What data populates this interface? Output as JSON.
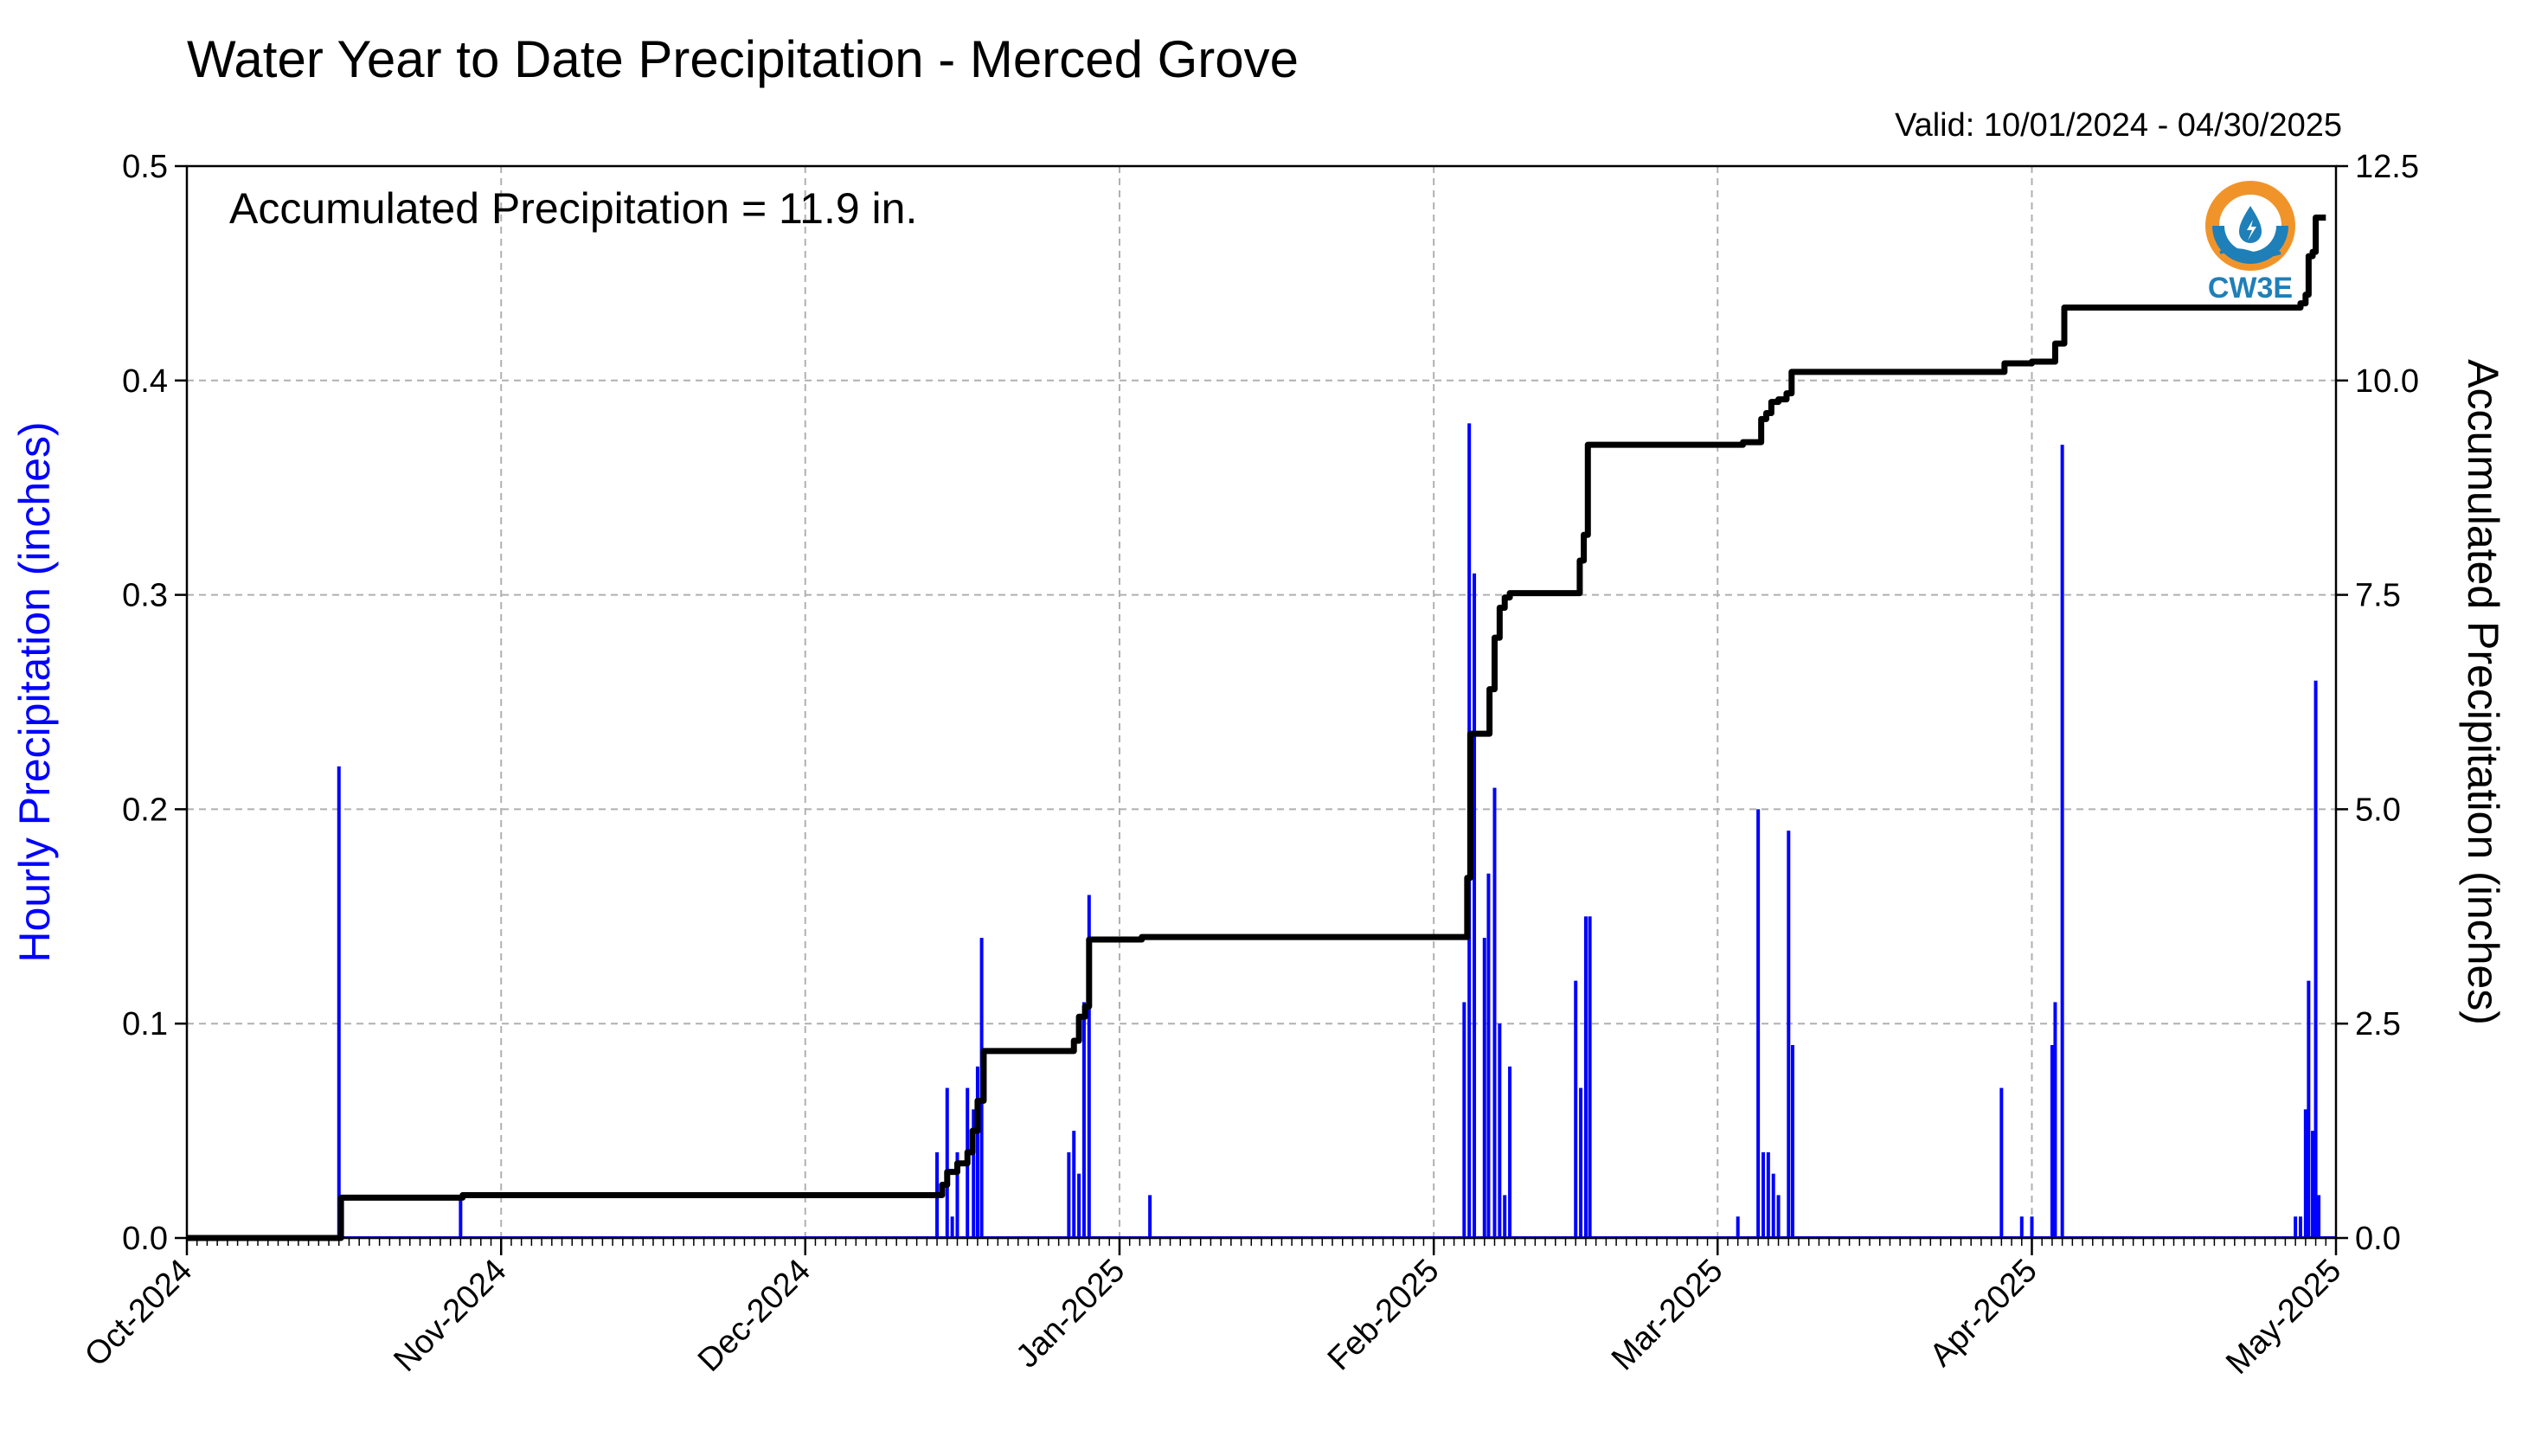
{
  "title": "Water Year to Date Precipitation - Merced Grove",
  "valid_text": "Valid: 10/01/2024 - 04/30/2025",
  "accumulated_text": "Accumulated Precipitation = 11.9 in.",
  "logo_text": "CW3E",
  "colors": {
    "hourly": "#0000ff",
    "accumulated": "#000000",
    "grid": "#b0b0b0",
    "logo_orange": "#f0942a",
    "logo_blue": "#1f7fb8"
  },
  "chart_data": {
    "type": "bar",
    "xlabel": "",
    "ylabel": "Hourly Precipitation (inches)",
    "y2label": "Accumulated Precipitation (inches)",
    "xlim": [
      "2024-10-01",
      "2025-05-01"
    ],
    "ylim": [
      0,
      0.5
    ],
    "y2lim": [
      0,
      12.5
    ],
    "grid": true,
    "x_ticks": [
      "Oct-2024",
      "Nov-2024",
      "Dec-2024",
      "Jan-2025",
      "Feb-2025",
      "Mar-2025",
      "Apr-2025",
      "May-2025"
    ],
    "y_ticks": [
      "0.0",
      "0.1",
      "0.2",
      "0.3",
      "0.4",
      "0.5"
    ],
    "y2_ticks": [
      "0.0",
      "2.5",
      "5.0",
      "7.5",
      "10.0",
      "12.5"
    ],
    "series": [
      {
        "name": "Hourly Precipitation (inches)",
        "type": "bar",
        "axis": "left",
        "points": [
          [
            "2024-10-16",
            0.22
          ],
          [
            "2024-10-28",
            0.02
          ],
          [
            "2024-12-14",
            0.04
          ],
          [
            "2024-12-15",
            0.07
          ],
          [
            "2024-12-15.5",
            0.01
          ],
          [
            "2024-12-16",
            0.04
          ],
          [
            "2024-12-17",
            0.07
          ],
          [
            "2024-12-17.6",
            0.06
          ],
          [
            "2024-12-18",
            0.08
          ],
          [
            "2024-12-18.4",
            0.14
          ],
          [
            "2024-12-27",
            0.04
          ],
          [
            "2024-12-27.5",
            0.05
          ],
          [
            "2024-12-28",
            0.03
          ],
          [
            "2024-12-28.5",
            0.11
          ],
          [
            "2024-12-29",
            0.16
          ],
          [
            "2025-01-04",
            0.02
          ],
          [
            "2025-02-04",
            0.11
          ],
          [
            "2025-02-04.5",
            0.38
          ],
          [
            "2025-02-05",
            0.31
          ],
          [
            "2025-02-06",
            0.14
          ],
          [
            "2025-02-06.4",
            0.17
          ],
          [
            "2025-02-07",
            0.21
          ],
          [
            "2025-02-07.5",
            0.1
          ],
          [
            "2025-02-08",
            0.02
          ],
          [
            "2025-02-08.5",
            0.08
          ],
          [
            "2025-02-15",
            0.12
          ],
          [
            "2025-02-15.5",
            0.07
          ],
          [
            "2025-02-16",
            0.15
          ],
          [
            "2025-02-16.4",
            0.15
          ],
          [
            "2025-03-03",
            0.01
          ],
          [
            "2025-03-05",
            0.2
          ],
          [
            "2025-03-05.5",
            0.04
          ],
          [
            "2025-03-06",
            0.04
          ],
          [
            "2025-03-06.5",
            0.03
          ],
          [
            "2025-03-07",
            0.02
          ],
          [
            "2025-03-08",
            0.19
          ],
          [
            "2025-03-08.4",
            0.09
          ],
          [
            "2025-03-29",
            0.07
          ],
          [
            "2025-03-31",
            0.01
          ],
          [
            "2025-04-01",
            0.01
          ],
          [
            "2025-04-03",
            0.09
          ],
          [
            "2025-04-03.3",
            0.11
          ],
          [
            "2025-04-04",
            0.37
          ],
          [
            "2025-04-27",
            0.01
          ],
          [
            "2025-04-27.5",
            0.01
          ],
          [
            "2025-04-28",
            0.06
          ],
          [
            "2025-04-28.3",
            0.12
          ],
          [
            "2025-04-28.7",
            0.05
          ],
          [
            "2025-04-29",
            0.26
          ],
          [
            "2025-04-29.3",
            0.02
          ]
        ]
      },
      {
        "name": "Accumulated Precipitation (inches)",
        "type": "step-line",
        "axis": "right",
        "points": [
          [
            "2024-10-01",
            0.0
          ],
          [
            "2024-10-16",
            0.0
          ],
          [
            "2024-10-16.2",
            0.47
          ],
          [
            "2024-10-28",
            0.47
          ],
          [
            "2024-10-28.2",
            0.5
          ],
          [
            "2024-12-14",
            0.5
          ],
          [
            "2024-12-14.5",
            0.62
          ],
          [
            "2024-12-15",
            0.77
          ],
          [
            "2024-12-16",
            0.87
          ],
          [
            "2024-12-17",
            1.0
          ],
          [
            "2024-12-17.5",
            1.25
          ],
          [
            "2024-12-18",
            1.6
          ],
          [
            "2024-12-18.6",
            2.18
          ],
          [
            "2024-12-27",
            2.18
          ],
          [
            "2024-12-27.5",
            2.3
          ],
          [
            "2024-12-28",
            2.58
          ],
          [
            "2024-12-28.6",
            2.7
          ],
          [
            "2024-12-29",
            3.48
          ],
          [
            "2025-01-03",
            3.48
          ],
          [
            "2025-01-03.2",
            3.51
          ],
          [
            "2025-02-04",
            3.51
          ],
          [
            "2025-02-04.3",
            4.2
          ],
          [
            "2025-02-04.6",
            5.88
          ],
          [
            "2025-02-06",
            5.88
          ],
          [
            "2025-02-06.5",
            6.4
          ],
          [
            "2025-02-07",
            7.0
          ],
          [
            "2025-02-07.5",
            7.35
          ],
          [
            "2025-02-08",
            7.47
          ],
          [
            "2025-02-08.5",
            7.52
          ],
          [
            "2025-02-15",
            7.52
          ],
          [
            "2025-02-15.4",
            7.9
          ],
          [
            "2025-02-15.8",
            8.2
          ],
          [
            "2025-02-16.2",
            9.25
          ],
          [
            "2025-03-03",
            9.25
          ],
          [
            "2025-03-03.5",
            9.28
          ],
          [
            "2025-03-05",
            9.28
          ],
          [
            "2025-03-05.3",
            9.55
          ],
          [
            "2025-03-05.8",
            9.62
          ],
          [
            "2025-03-06.3",
            9.75
          ],
          [
            "2025-03-07",
            9.78
          ],
          [
            "2025-03-07.8",
            9.85
          ],
          [
            "2025-03-08.3",
            10.1
          ],
          [
            "2025-03-29",
            10.1
          ],
          [
            "2025-03-29.3",
            10.2
          ],
          [
            "2025-04-01",
            10.22
          ],
          [
            "2025-04-03",
            10.22
          ],
          [
            "2025-04-03.3",
            10.43
          ],
          [
            "2025-04-04",
            10.43
          ],
          [
            "2025-04-04.2",
            10.85
          ],
          [
            "2025-04-27",
            10.85
          ],
          [
            "2025-04-27.5",
            10.9
          ],
          [
            "2025-04-28",
            11.0
          ],
          [
            "2025-04-28.3",
            11.45
          ],
          [
            "2025-04-28.7",
            11.5
          ],
          [
            "2025-04-29",
            11.9
          ],
          [
            "2025-04-30",
            11.9
          ]
        ]
      }
    ]
  }
}
